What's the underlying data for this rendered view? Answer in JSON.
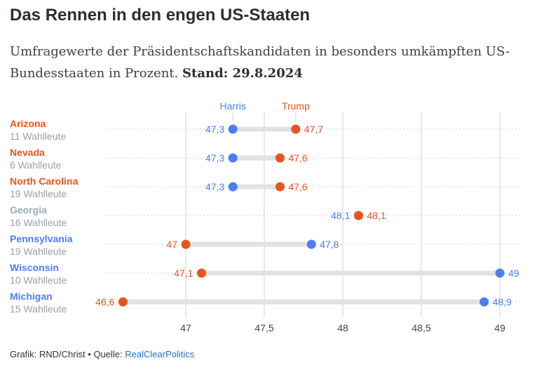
{
  "title": "Das Rennen in den engen US-Staaten",
  "subtitle_text": "Umfragewerte der Präsidentschaftskandidaten in besonders umkämpften US-Bundesstaaten in Prozent.",
  "subtitle_stand": "Stand: 29.8.2024",
  "footer": {
    "credit": "Grafik: RND/Christ",
    "separator": "•",
    "source_label": "Quelle:",
    "source": "RealClearPolitics"
  },
  "colors": {
    "harris": "#4c7ef3",
    "trump": "#e85420",
    "neutral": "#9aaab8",
    "bar": "#e2e2e2",
    "grid": "#d0d0d0",
    "subtext": "#9aa0a6"
  },
  "chart_data": {
    "type": "dumbbell",
    "title": "Das Rennen in den engen US-Staaten",
    "series": [
      {
        "name": "Harris",
        "values": [
          47.3,
          47.3,
          47.3,
          48.1,
          47.8,
          49.0,
          48.9
        ]
      },
      {
        "name": "Trump",
        "values": [
          47.7,
          47.6,
          47.6,
          48.1,
          47.0,
          47.1,
          46.6
        ]
      }
    ],
    "value_labels": {
      "Harris": [
        "47,3",
        "47,3",
        "47,3",
        "48,1",
        "47,8",
        "49",
        "48,9"
      ],
      "Trump": [
        "47,7",
        "47,6",
        "47,6",
        "48,1",
        "47",
        "47,1",
        "46,6"
      ]
    },
    "categories": [
      {
        "state": "Arizona",
        "electors": "11 Wahlleute",
        "lean": "trump"
      },
      {
        "state": "Nevada",
        "electors": "6 Wahlleute",
        "lean": "trump"
      },
      {
        "state": "North Carolina",
        "electors": "19 Wahlleute",
        "lean": "trump"
      },
      {
        "state": "Georgia",
        "electors": "16 Wahlleute",
        "lean": "neutral"
      },
      {
        "state": "Pennsylvania",
        "electors": "19 Wahlleute",
        "lean": "harris"
      },
      {
        "state": "Wisconsin",
        "electors": "10 Wahlleute",
        "lean": "harris"
      },
      {
        "state": "Michigan",
        "electors": "15 Wahlleute",
        "lean": "harris"
      }
    ],
    "xlim": [
      46.55,
      49.0
    ],
    "xticks": [
      47,
      47.5,
      48,
      48.5,
      49
    ],
    "xtick_labels": [
      "47",
      "47,5",
      "48",
      "48,5",
      "49"
    ],
    "xlabel": "",
    "ylabel": "",
    "legend": [
      {
        "name": "Harris",
        "value": 47.3
      },
      {
        "name": "Trump",
        "value": 47.7
      }
    ]
  }
}
